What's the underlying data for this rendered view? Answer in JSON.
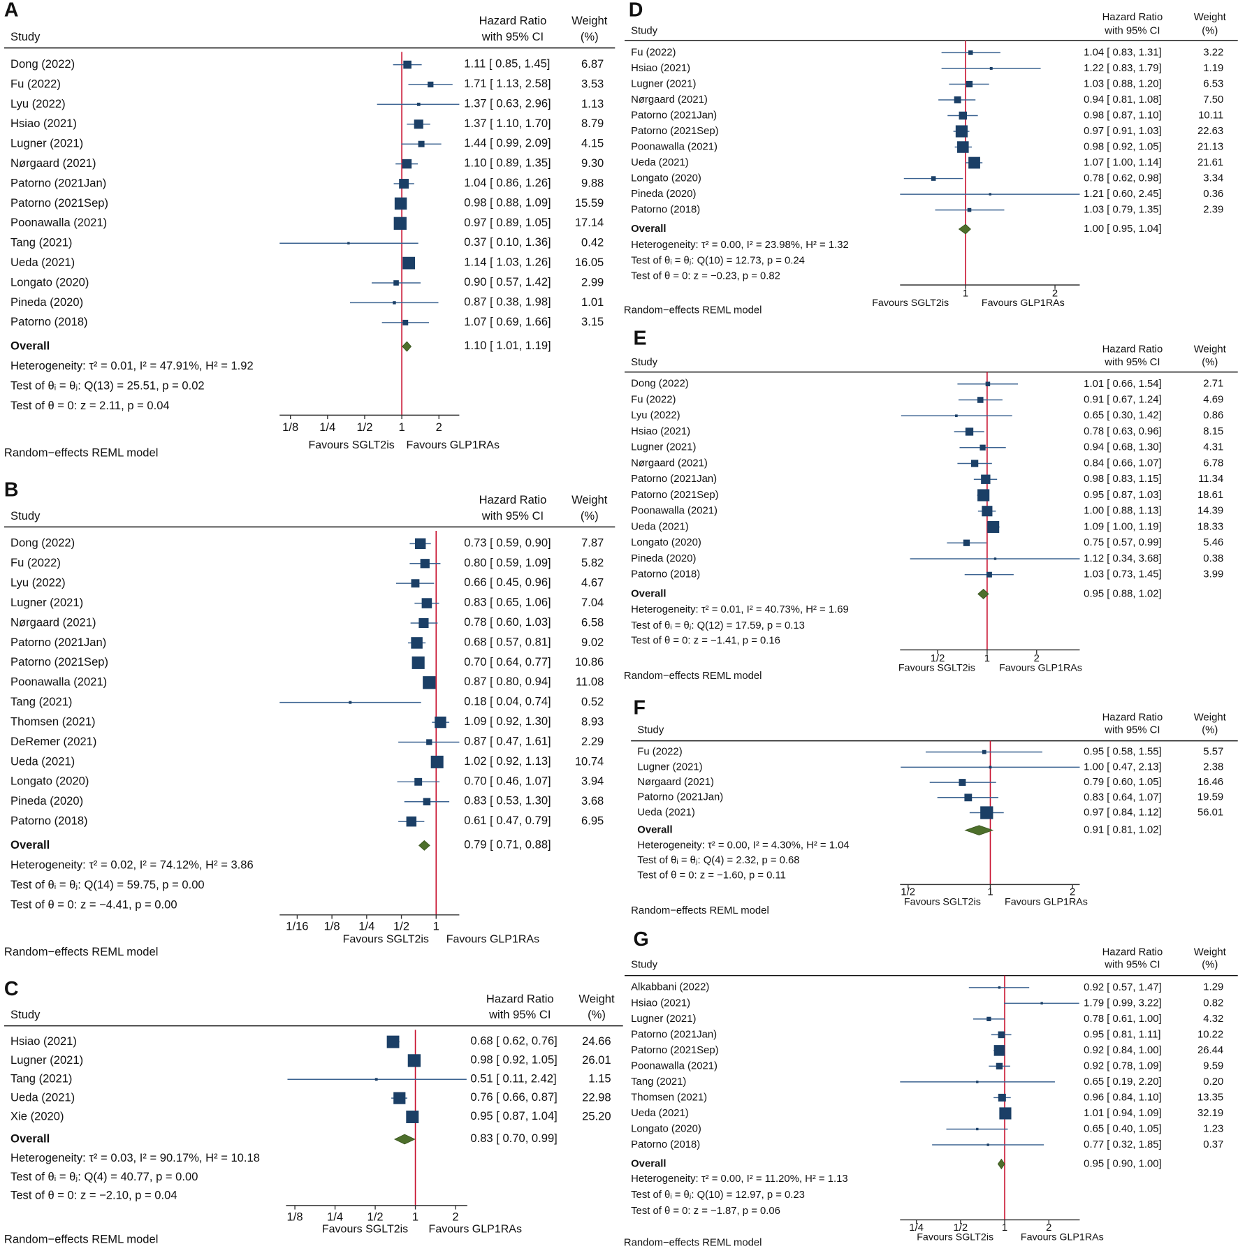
{
  "labels": {
    "study": "Study",
    "hr_line1": "Hazard Ratio",
    "hr_line2": "with 95% CI",
    "weight_line1": "Weight",
    "weight_line2": "(%)",
    "overall": "Overall",
    "favours_left": "Favours SGLT2is",
    "favours_right": "Favours GLP1RAs",
    "model": "Random−effects REML model"
  },
  "colors": {
    "marker": "#1b3f66",
    "ci_line": "#3b6391",
    "diamond": "#4d6f2b",
    "null_line": "#c8102e"
  },
  "chart_data": [
    {
      "type": "forest",
      "panel": "A",
      "xscale": "log",
      "ticks": [
        "1/8",
        "1/4",
        "1/2",
        "1",
        "2"
      ],
      "rows": [
        {
          "study": "Dong (2022)",
          "hr": "1.11",
          "lo": "0.85",
          "hi": "1.45",
          "w": "6.87"
        },
        {
          "study": "Fu (2022)",
          "hr": "1.71",
          "lo": "1.13",
          "hi": "2.58",
          "w": "3.53"
        },
        {
          "study": "Lyu (2022)",
          "hr": "1.37",
          "lo": "0.63",
          "hi": "2.96",
          "w": "1.13"
        },
        {
          "study": "Hsiao (2021)",
          "hr": "1.37",
          "lo": "1.10",
          "hi": "1.70",
          "w": "8.79"
        },
        {
          "study": "Lugner (2021)",
          "hr": "1.44",
          "lo": "0.99",
          "hi": "2.09",
          "w": "4.15"
        },
        {
          "study": "Nørgaard (2021)",
          "hr": "1.10",
          "lo": "0.89",
          "hi": "1.35",
          "w": "9.30"
        },
        {
          "study": "Patorno (2021Jan)",
          "hr": "1.04",
          "lo": "0.86",
          "hi": "1.26",
          "w": "9.88"
        },
        {
          "study": "Patorno (2021Sep)",
          "hr": "0.98",
          "lo": "0.88",
          "hi": "1.09",
          "w": "15.59"
        },
        {
          "study": "Poonawalla (2021)",
          "hr": "0.97",
          "lo": "0.89",
          "hi": "1.05",
          "w": "17.14"
        },
        {
          "study": "Tang (2021)",
          "hr": "0.37",
          "lo": "0.10",
          "hi": "1.36",
          "w": "0.42"
        },
        {
          "study": "Ueda (2021)",
          "hr": "1.14",
          "lo": "1.03",
          "hi": "1.26",
          "w": "16.05"
        },
        {
          "study": "Longato (2020)",
          "hr": "0.90",
          "lo": "0.57",
          "hi": "1.42",
          "w": "2.99"
        },
        {
          "study": "Pineda (2020)",
          "hr": "0.87",
          "lo": "0.38",
          "hi": "1.98",
          "w": "1.01"
        },
        {
          "study": "Patorno (2018)",
          "hr": "1.07",
          "lo": "0.69",
          "hi": "1.66",
          "w": "3.15"
        }
      ],
      "overall": {
        "hr": "1.10",
        "lo": "1.01",
        "hi": "1.19"
      },
      "stats": [
        "Heterogeneity: τ² = 0.01, I² = 47.91%, H² = 1.92",
        "Test of θᵢ = θⱼ: Q(13) = 25.51, p = 0.02",
        "Test of θ = 0: z = 2.11, p = 0.04"
      ]
    },
    {
      "type": "forest",
      "panel": "B",
      "xscale": "log",
      "ticks": [
        "1/16",
        "1/8",
        "1/4",
        "1/2",
        "1"
      ],
      "rows": [
        {
          "study": "Dong (2022)",
          "hr": "0.73",
          "lo": "0.59",
          "hi": "0.90",
          "w": "7.87"
        },
        {
          "study": "Fu (2022)",
          "hr": "0.80",
          "lo": "0.59",
          "hi": "1.09",
          "w": "5.82"
        },
        {
          "study": "Lyu (2022)",
          "hr": "0.66",
          "lo": "0.45",
          "hi": "0.96",
          "w": "4.67"
        },
        {
          "study": "Lugner (2021)",
          "hr": "0.83",
          "lo": "0.65",
          "hi": "1.06",
          "w": "7.04"
        },
        {
          "study": "Nørgaard (2021)",
          "hr": "0.78",
          "lo": "0.60",
          "hi": "1.03",
          "w": "6.58"
        },
        {
          "study": "Patorno (2021Jan)",
          "hr": "0.68",
          "lo": "0.57",
          "hi": "0.81",
          "w": "9.02"
        },
        {
          "study": "Patorno (2021Sep)",
          "hr": "0.70",
          "lo": "0.64",
          "hi": "0.77",
          "w": "10.86"
        },
        {
          "study": "Poonawalla (2021)",
          "hr": "0.87",
          "lo": "0.80",
          "hi": "0.94",
          "w": "11.08"
        },
        {
          "study": "Tang (2021)",
          "hr": "0.18",
          "lo": "0.04",
          "hi": "0.74",
          "w": "0.52"
        },
        {
          "study": "Thomsen (2021)",
          "hr": "1.09",
          "lo": "0.92",
          "hi": "1.30",
          "w": "8.93"
        },
        {
          "study": "DeRemer (2021)",
          "hr": "0.87",
          "lo": "0.47",
          "hi": "1.61",
          "w": "2.29"
        },
        {
          "study": "Ueda (2021)",
          "hr": "1.02",
          "lo": "0.92",
          "hi": "1.13",
          "w": "10.74"
        },
        {
          "study": "Longato (2020)",
          "hr": "0.70",
          "lo": "0.46",
          "hi": "1.07",
          "w": "3.94"
        },
        {
          "study": "Pineda (2020)",
          "hr": "0.83",
          "lo": "0.53",
          "hi": "1.30",
          "w": "3.68"
        },
        {
          "study": "Patorno (2018)",
          "hr": "0.61",
          "lo": "0.47",
          "hi": "0.79",
          "w": "6.95"
        }
      ],
      "overall": {
        "hr": "0.79",
        "lo": "0.71",
        "hi": "0.88"
      },
      "stats": [
        "Heterogeneity: τ² = 0.02, I² = 74.12%, H² = 3.86",
        "Test of θᵢ = θⱼ: Q(14) = 59.75, p = 0.00",
        "Test of θ = 0: z = −4.41, p = 0.00"
      ]
    },
    {
      "type": "forest",
      "panel": "C",
      "xscale": "log",
      "ticks": [
        "1/8",
        "1/4",
        "1/2",
        "1",
        "2"
      ],
      "rows": [
        {
          "study": "Hsiao (2021)",
          "hr": "0.68",
          "lo": "0.62",
          "hi": "0.76",
          "w": "24.66"
        },
        {
          "study": "Lugner (2021)",
          "hr": "0.98",
          "lo": "0.92",
          "hi": "1.05",
          "w": "26.01"
        },
        {
          "study": "Tang (2021)",
          "hr": "0.51",
          "lo": "0.11",
          "hi": "2.42",
          "w": "1.15"
        },
        {
          "study": "Ueda (2021)",
          "hr": "0.76",
          "lo": "0.66",
          "hi": "0.87",
          "w": "22.98"
        },
        {
          "study": "Xie (2020)",
          "hr": "0.95",
          "lo": "0.87",
          "hi": "1.04",
          "w": "25.20"
        }
      ],
      "overall": {
        "hr": "0.83",
        "lo": "0.70",
        "hi": "0.99"
      },
      "stats": [
        "Heterogeneity: τ² = 0.03, I² = 90.17%, H² = 10.18",
        "Test of θᵢ = θⱼ: Q(4) = 40.77, p = 0.00",
        "Test of θ = 0: z = −2.10, p = 0.04"
      ]
    },
    {
      "type": "forest",
      "panel": "D",
      "xscale": "log",
      "ticks": [
        "1",
        "2"
      ],
      "rows": [
        {
          "study": "Fu (2022)",
          "hr": "1.04",
          "lo": "0.83",
          "hi": "1.31",
          "w": "3.22"
        },
        {
          "study": "Hsiao (2021)",
          "hr": "1.22",
          "lo": "0.83",
          "hi": "1.79",
          "w": "1.19"
        },
        {
          "study": "Lugner (2021)",
          "hr": "1.03",
          "lo": "0.88",
          "hi": "1.20",
          "w": "6.53"
        },
        {
          "study": "Nørgaard (2021)",
          "hr": "0.94",
          "lo": "0.81",
          "hi": "1.08",
          "w": "7.50"
        },
        {
          "study": "Patorno (2021Jan)",
          "hr": "0.98",
          "lo": "0.87",
          "hi": "1.10",
          "w": "10.11"
        },
        {
          "study": "Patorno (2021Sep)",
          "hr": "0.97",
          "lo": "0.91",
          "hi": "1.03",
          "w": "22.63"
        },
        {
          "study": "Poonawalla (2021)",
          "hr": "0.98",
          "lo": "0.92",
          "hi": "1.05",
          "w": "21.13"
        },
        {
          "study": "Ueda (2021)",
          "hr": "1.07",
          "lo": "1.00",
          "hi": "1.14",
          "w": "21.61"
        },
        {
          "study": "Longato (2020)",
          "hr": "0.78",
          "lo": "0.62",
          "hi": "0.98",
          "w": "3.34"
        },
        {
          "study": "Pineda (2020)",
          "hr": "1.21",
          "lo": "0.60",
          "hi": "2.45",
          "w": "0.36"
        },
        {
          "study": "Patorno (2018)",
          "hr": "1.03",
          "lo": "0.79",
          "hi": "1.35",
          "w": "2.39"
        }
      ],
      "overall": {
        "hr": "1.00",
        "lo": "0.95",
        "hi": "1.04"
      },
      "stats": [
        "Heterogeneity: τ² = 0.00, I² = 23.98%, H² = 1.32",
        "Test of θᵢ = θⱼ: Q(10) = 12.73, p = 0.24",
        "Test of θ = 0: z = −0.23, p = 0.82"
      ]
    },
    {
      "type": "forest",
      "panel": "E",
      "xscale": "log",
      "ticks": [
        "1/2",
        "1",
        "2"
      ],
      "rows": [
        {
          "study": "Dong (2022)",
          "hr": "1.01",
          "lo": "0.66",
          "hi": "1.54",
          "w": "2.71"
        },
        {
          "study": "Fu (2022)",
          "hr": "0.91",
          "lo": "0.67",
          "hi": "1.24",
          "w": "4.69"
        },
        {
          "study": "Lyu (2022)",
          "hr": "0.65",
          "lo": "0.30",
          "hi": "1.42",
          "w": "0.86"
        },
        {
          "study": "Hsiao (2021)",
          "hr": "0.78",
          "lo": "0.63",
          "hi": "0.96",
          "w": "8.15"
        },
        {
          "study": "Lugner (2021)",
          "hr": "0.94",
          "lo": "0.68",
          "hi": "1.30",
          "w": "4.31"
        },
        {
          "study": "Nørgaard (2021)",
          "hr": "0.84",
          "lo": "0.66",
          "hi": "1.07",
          "w": "6.78"
        },
        {
          "study": "Patorno (2021Jan)",
          "hr": "0.98",
          "lo": "0.83",
          "hi": "1.15",
          "w": "11.34"
        },
        {
          "study": "Patorno (2021Sep)",
          "hr": "0.95",
          "lo": "0.87",
          "hi": "1.03",
          "w": "18.61"
        },
        {
          "study": "Poonawalla (2021)",
          "hr": "1.00",
          "lo": "0.88",
          "hi": "1.13",
          "w": "14.39"
        },
        {
          "study": "Ueda (2021)",
          "hr": "1.09",
          "lo": "1.00",
          "hi": "1.19",
          "w": "18.33"
        },
        {
          "study": "Longato (2020)",
          "hr": "0.75",
          "lo": "0.57",
          "hi": "0.99",
          "w": "5.46"
        },
        {
          "study": "Pineda (2020)",
          "hr": "1.12",
          "lo": "0.34",
          "hi": "3.68",
          "w": "0.38"
        },
        {
          "study": "Patorno (2018)",
          "hr": "1.03",
          "lo": "0.73",
          "hi": "1.45",
          "w": "3.99"
        }
      ],
      "overall": {
        "hr": "0.95",
        "lo": "0.88",
        "hi": "1.02"
      },
      "stats": [
        "Heterogeneity: τ² = 0.01, I² = 40.73%, H² = 1.69",
        "Test of θᵢ = θⱼ: Q(12) = 17.59, p = 0.13",
        "Test of θ = 0: z = −1.41, p = 0.16"
      ]
    },
    {
      "type": "forest",
      "panel": "F",
      "xscale": "log",
      "ticks": [
        "1/2",
        "1",
        "2"
      ],
      "rows": [
        {
          "study": "Fu (2022)",
          "hr": "0.95",
          "lo": "0.58",
          "hi": "1.55",
          "w": "5.57"
        },
        {
          "study": "Lugner (2021)",
          "hr": "1.00",
          "lo": "0.47",
          "hi": "2.13",
          "w": "2.38"
        },
        {
          "study": "Nørgaard (2021)",
          "hr": "0.79",
          "lo": "0.60",
          "hi": "1.05",
          "w": "16.46"
        },
        {
          "study": "Patorno (2021Jan)",
          "hr": "0.83",
          "lo": "0.64",
          "hi": "1.07",
          "w": "19.59"
        },
        {
          "study": "Ueda (2021)",
          "hr": "0.97",
          "lo": "0.84",
          "hi": "1.12",
          "w": "56.01"
        }
      ],
      "overall": {
        "hr": "0.91",
        "lo": "0.81",
        "hi": "1.02"
      },
      "stats": [
        "Heterogeneity: τ² = 0.00, I² = 4.30%, H² = 1.04",
        "Test of θᵢ = θⱼ: Q(4) = 2.32, p = 0.68",
        "Test of θ = 0: z = −1.60, p = 0.11"
      ]
    },
    {
      "type": "forest",
      "panel": "G",
      "xscale": "log",
      "ticks": [
        "1/4",
        "1/2",
        "1",
        "2"
      ],
      "rows": [
        {
          "study": "Alkabbani (2022)",
          "hr": "0.92",
          "lo": "0.57",
          "hi": "1.47",
          "w": "1.29"
        },
        {
          "study": "Hsiao (2021)",
          "hr": "1.79",
          "lo": "0.99",
          "hi": "3.22",
          "w": "0.82"
        },
        {
          "study": "Lugner (2021)",
          "hr": "0.78",
          "lo": "0.61",
          "hi": "1.00",
          "w": "4.32"
        },
        {
          "study": "Patorno (2021Jan)",
          "hr": "0.95",
          "lo": "0.81",
          "hi": "1.11",
          "w": "10.22"
        },
        {
          "study": "Patorno (2021Sep)",
          "hr": "0.92",
          "lo": "0.84",
          "hi": "1.00",
          "w": "26.44"
        },
        {
          "study": "Poonawalla (2021)",
          "hr": "0.92",
          "lo": "0.78",
          "hi": "1.09",
          "w": "9.59"
        },
        {
          "study": "Tang (2021)",
          "hr": "0.65",
          "lo": "0.19",
          "hi": "2.20",
          "w": "0.20"
        },
        {
          "study": "Thomsen (2021)",
          "hr": "0.96",
          "lo": "0.84",
          "hi": "1.10",
          "w": "13.35"
        },
        {
          "study": "Ueda (2021)",
          "hr": "1.01",
          "lo": "0.94",
          "hi": "1.09",
          "w": "32.19"
        },
        {
          "study": "Longato (2020)",
          "hr": "0.65",
          "lo": "0.40",
          "hi": "1.05",
          "w": "1.23"
        },
        {
          "study": "Patorno (2018)",
          "hr": "0.77",
          "lo": "0.32",
          "hi": "1.85",
          "w": "0.37"
        }
      ],
      "overall": {
        "hr": "0.95",
        "lo": "0.90",
        "hi": "1.00"
      },
      "stats": [
        "Heterogeneity: τ² = 0.00, I² = 11.20%, H² = 1.13",
        "Test of θᵢ = θⱼ: Q(10) = 12.97, p = 0.23",
        "Test of θ = 0: z = −1.87, p = 0.06"
      ]
    }
  ]
}
